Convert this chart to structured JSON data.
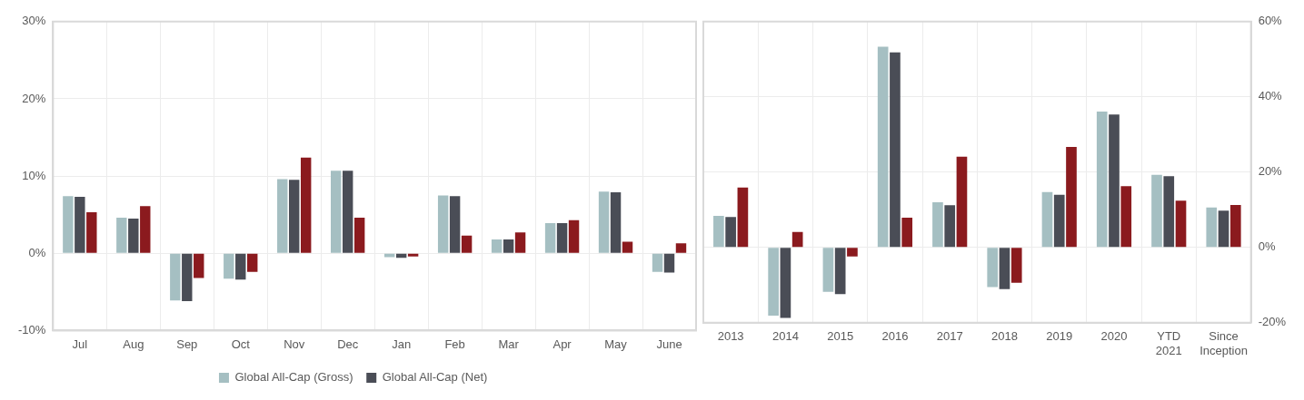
{
  "chart_data": [
    {
      "type": "bar",
      "categories": [
        "Jul",
        "Aug",
        "Sep",
        "Oct",
        "Nov",
        "Dec",
        "Jan",
        "Feb",
        "Mar",
        "Apr",
        "May",
        "June"
      ],
      "series": [
        {
          "name": "Global All-Cap (Gross)",
          "color": "#a5bfc2",
          "values": [
            7.4,
            4.6,
            -6.1,
            -3.3,
            9.6,
            10.7,
            -0.5,
            7.5,
            1.8,
            3.9,
            8.0,
            -2.4
          ]
        },
        {
          "name": "Global All-Cap (Net)",
          "color": "#4a4d56",
          "values": [
            7.3,
            4.5,
            -6.2,
            -3.4,
            9.5,
            10.7,
            -0.6,
            7.4,
            1.8,
            3.9,
            7.9,
            -2.5
          ]
        },
        {
          "color": "#8b1a1e",
          "values": [
            5.3,
            6.1,
            -3.2,
            -2.4,
            12.4,
            4.6,
            -0.4,
            2.3,
            2.7,
            4.3,
            1.5,
            1.3
          ]
        }
      ],
      "ylim": [
        -10,
        30
      ],
      "yticks": [
        {
          "value": -10,
          "label": "-10%"
        },
        {
          "value": 0,
          "label": "0%"
        },
        {
          "value": 10,
          "label": "10%"
        },
        {
          "value": 20,
          "label": "20%"
        },
        {
          "value": 30,
          "label": "30%"
        }
      ],
      "grid": true,
      "legend": "bottom"
    },
    {
      "type": "bar",
      "categories": [
        "2013",
        "2014",
        "2015",
        "2016",
        "2017",
        "2018",
        "2019",
        "2020",
        "YTD 2021",
        "Since Inception"
      ],
      "series": [
        {
          "color": "#a5bfc2",
          "values": [
            8.4,
            -18.1,
            -11.8,
            53.3,
            12.0,
            -10.5,
            14.7,
            36.1,
            19.3,
            10.6
          ],
          "axis": "y2"
        },
        {
          "color": "#4a4d56",
          "values": [
            8.1,
            -18.7,
            -12.4,
            51.8,
            11.2,
            -11.1,
            14.0,
            35.3,
            18.9,
            9.8
          ],
          "axis": "y2"
        },
        {
          "color": "#8b1a1e",
          "values": [
            15.9,
            4.1,
            -2.4,
            7.9,
            24.1,
            -9.4,
            26.7,
            16.3,
            12.4,
            11.3
          ],
          "axis": "y2"
        }
      ],
      "y2lim": [
        -20,
        60
      ],
      "y2ticks": [
        {
          "value": -20,
          "label": "-20%"
        },
        {
          "value": 0,
          "label": "0%"
        },
        {
          "value": 20,
          "label": "20%"
        },
        {
          "value": 40,
          "label": "40%"
        },
        {
          "value": 60,
          "label": "60%"
        }
      ],
      "grid": true,
      "legend": false
    }
  ]
}
